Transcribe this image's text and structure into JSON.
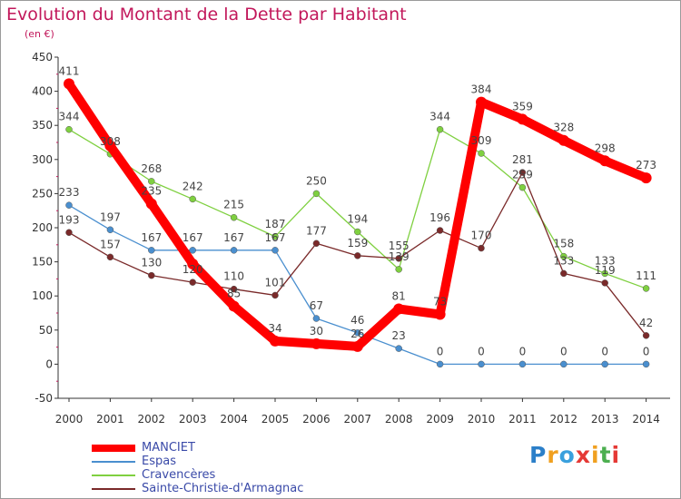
{
  "header": {
    "title": "Evolution du Montant de la Dette par Habitant",
    "unit": "(en €)"
  },
  "logo": {
    "letters": [
      {
        "ch": "P",
        "color": "#2b7fc9"
      },
      {
        "ch": "r",
        "color": "#f0a020"
      },
      {
        "ch": "o",
        "color": "#39a0dd"
      },
      {
        "ch": "x",
        "color": "#e53935"
      },
      {
        "ch": "i",
        "color": "#f0a020"
      },
      {
        "ch": "t",
        "color": "#4caf50"
      },
      {
        "ch": "i",
        "color": "#e53935"
      }
    ]
  },
  "chart_data": {
    "type": "line",
    "title": "Evolution du Montant de la Dette par Habitant",
    "ylabel": "(en €)",
    "xlabel": "",
    "x": [
      "2000",
      "2001",
      "2002",
      "2003",
      "2004",
      "2005",
      "2006",
      "2007",
      "2008",
      "2009",
      "2010",
      "2011",
      "2012",
      "2013",
      "2014"
    ],
    "ylim": [
      -50,
      450
    ],
    "yticks": [
      -50,
      0,
      50,
      100,
      150,
      200,
      250,
      300,
      350,
      400,
      450
    ],
    "grid": false,
    "legend_position": "bottom-left",
    "series": [
      {
        "name": "MANCIET",
        "color": "#ff0000",
        "emphasis": true,
        "values": [
          411,
          320,
          235,
          147,
          85,
          34,
          30,
          26,
          81,
          73,
          384,
          359,
          328,
          298,
          273
        ],
        "labels": [
          "411",
          "",
          "235",
          "",
          "85",
          "34",
          "30",
          "26",
          "81",
          "73",
          "384",
          "359",
          "328",
          "298",
          "273"
        ]
      },
      {
        "name": "Espas",
        "color": "#4a8fcf",
        "emphasis": false,
        "values": [
          233,
          197,
          167,
          167,
          167,
          167,
          67,
          46,
          23,
          0,
          0,
          0,
          0,
          0,
          0
        ],
        "labels": [
          "233",
          "197",
          "167",
          "167",
          "167",
          "167",
          "67",
          "46",
          "23",
          "0",
          "0",
          "0",
          "0",
          "0",
          "0"
        ]
      },
      {
        "name": "Cravencères",
        "color": "#7fd040",
        "emphasis": false,
        "values": [
          344,
          308,
          268,
          242,
          215,
          187,
          250,
          194,
          139,
          344,
          309,
          259,
          158,
          133,
          111
        ],
        "labels": [
          "344",
          "308",
          "268",
          "242",
          "215",
          "187",
          "250",
          "194",
          "139",
          "344",
          "309",
          "259",
          "158",
          "133",
          "111"
        ]
      },
      {
        "name": "Sainte-Christie-d'Armagnac",
        "color": "#7a2a2a",
        "emphasis": false,
        "values": [
          193,
          157,
          130,
          120,
          110,
          101,
          177,
          159,
          155,
          196,
          170,
          281,
          133,
          119,
          42
        ],
        "labels": [
          "193",
          "157",
          "130",
          "120",
          "110",
          "101",
          "177",
          "159",
          "155",
          "196",
          "170",
          "281",
          "133",
          "119",
          "42"
        ]
      }
    ]
  }
}
